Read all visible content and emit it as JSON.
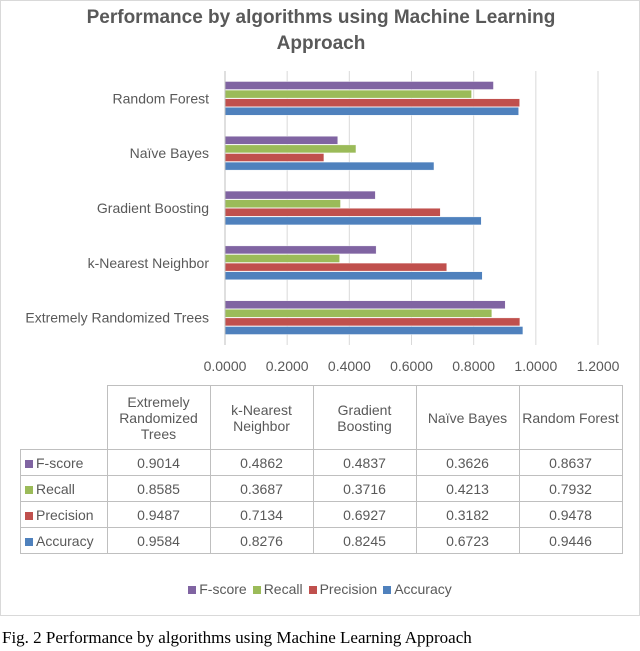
{
  "chart_data": {
    "type": "bar",
    "orientation": "horizontal",
    "title": "Performance by algorithms using Machine Learning Approach",
    "categories": [
      "Extremely Randomized Trees",
      "k-Nearest Neighbor",
      "Gradient Boosting",
      "Naïve Bayes",
      "Random Forest"
    ],
    "table_headers": [
      "Extremely Randomized Trees",
      "k-Nearest Neighbor",
      "Gradient Boosting",
      "Naïve Bayes",
      "Random Forest"
    ],
    "series": [
      {
        "name": "F-score",
        "color": "#8064a2",
        "values": [
          "0.9014",
          "0.4862",
          "0.4837",
          "0.3626",
          "0.8637"
        ]
      },
      {
        "name": "Recall",
        "color": "#9bbb59",
        "values": [
          "0.8585",
          "0.3687",
          "0.3716",
          "0.4213",
          "0.7932"
        ]
      },
      {
        "name": "Precision",
        "color": "#c0504d",
        "values": [
          "0.9487",
          "0.7134",
          "0.6927",
          "0.3182",
          "0.9478"
        ]
      },
      {
        "name": "Accuracy",
        "color": "#4f81bd",
        "values": [
          "0.9584",
          "0.8276",
          "0.8245",
          "0.6723",
          "0.9446"
        ]
      }
    ],
    "xlim": [
      0,
      1.2
    ],
    "xticks": [
      "0.0000",
      "0.2000",
      "0.4000",
      "0.6000",
      "0.8000",
      "1.0000",
      "1.2000"
    ],
    "grid": true,
    "legend_position": "bottom"
  },
  "caption": "Fig. 2 Performance by algorithms using Machine Learning Approach"
}
